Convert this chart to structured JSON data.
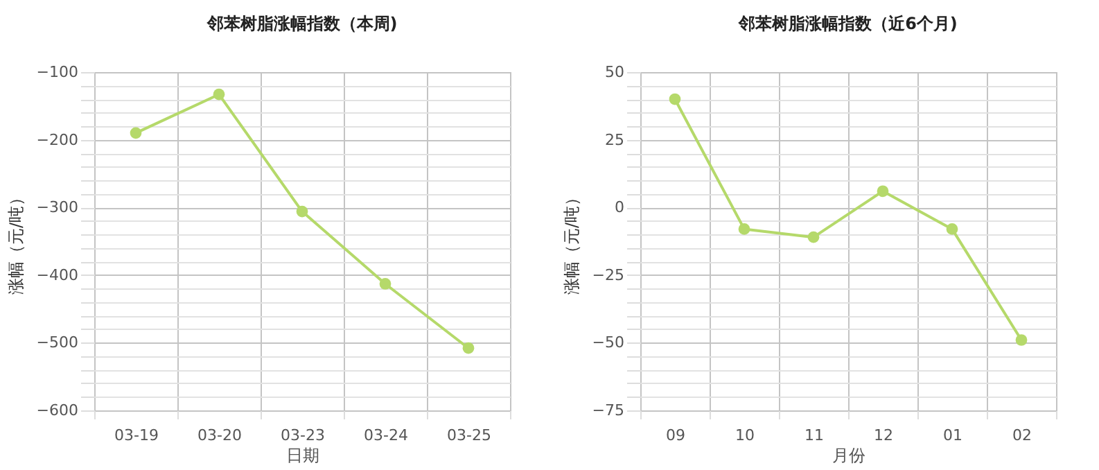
{
  "chart_data": [
    {
      "type": "line",
      "title": "邻苯树脂涨幅指数（本周)",
      "xlabel": "日期",
      "ylabel": "涨幅（元/吨）",
      "categories": [
        "03-19",
        "03-20",
        "03-23",
        "03-24",
        "03-25"
      ],
      "series": [
        {
          "color": "#b5d96a",
          "values": [
            -190,
            -133,
            -306,
            -413,
            -508
          ]
        }
      ],
      "ylim": [
        -600,
        -100
      ],
      "yticks": [
        -600,
        -500,
        -400,
        -300,
        -200,
        -100
      ],
      "grid": true,
      "marker": "circle"
    },
    {
      "type": "line",
      "title": "邻苯树脂涨幅指数（近6个月)",
      "xlabel": "月份",
      "ylabel": "涨幅（元/吨）",
      "categories": [
        "09",
        "10",
        "11",
        "12",
        "01",
        "02"
      ],
      "series": [
        {
          "color": "#b5d96a",
          "values": [
            40,
            -8,
            -11,
            6,
            -8,
            -49
          ]
        }
      ],
      "ylim": [
        -75,
        50
      ],
      "yticks": [
        -75,
        -50,
        -25,
        0,
        25,
        50
      ],
      "grid": true,
      "marker": "circle"
    }
  ]
}
